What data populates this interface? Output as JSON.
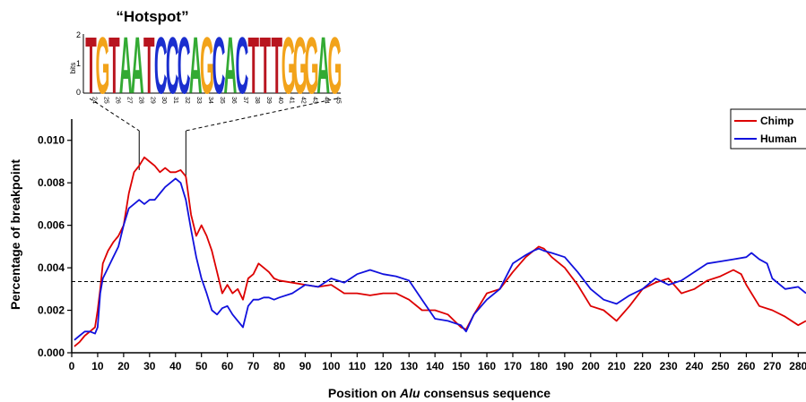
{
  "chart_data": {
    "type": "line",
    "title": "",
    "xlabel_parts": [
      "Position on ",
      "Alu",
      " consensus sequence"
    ],
    "ylabel": "Percentage of breakpoint",
    "xlim": [
      0,
      283
    ],
    "ylim": [
      0,
      0.011
    ],
    "x_ticks": [
      0,
      10,
      20,
      30,
      40,
      50,
      60,
      70,
      80,
      90,
      100,
      110,
      120,
      130,
      140,
      150,
      160,
      170,
      180,
      190,
      200,
      210,
      220,
      230,
      240,
      250,
      260,
      270,
      280
    ],
    "y_ticks": [
      {
        "value": 0.0,
        "label": "0.000"
      },
      {
        "value": 0.002,
        "label": "0.002"
      },
      {
        "value": 0.004,
        "label": "0.004"
      },
      {
        "value": 0.006,
        "label": "0.006"
      },
      {
        "value": 0.008,
        "label": "0.008"
      },
      {
        "value": 0.01,
        "label": "0.010"
      }
    ],
    "reference_line": {
      "y": 0.00335,
      "style": "dashed"
    },
    "legend_position": "top-right",
    "series": [
      {
        "name": "Chimp",
        "color": "#dd0000",
        "x": [
          1,
          3,
          5,
          7,
          9,
          10,
          11,
          12,
          14,
          16,
          18,
          20,
          22,
          24,
          26,
          28,
          30,
          32,
          34,
          36,
          38,
          40,
          42,
          44,
          46,
          48,
          50,
          52,
          54,
          56,
          58,
          60,
          62,
          64,
          66,
          68,
          70,
          72,
          74,
          76,
          78,
          80,
          85,
          90,
          95,
          100,
          105,
          110,
          115,
          120,
          125,
          130,
          135,
          140,
          145,
          150,
          152,
          155,
          160,
          165,
          170,
          175,
          178,
          180,
          182,
          185,
          190,
          195,
          200,
          205,
          210,
          215,
          220,
          225,
          230,
          235,
          240,
          245,
          250,
          255,
          258,
          260,
          265,
          270,
          275,
          280,
          283
        ],
        "y": [
          0.0003,
          0.0005,
          0.0008,
          0.001,
          0.0012,
          0.002,
          0.003,
          0.0042,
          0.0048,
          0.0052,
          0.0055,
          0.006,
          0.0075,
          0.0085,
          0.0088,
          0.0092,
          0.009,
          0.0088,
          0.0085,
          0.0087,
          0.0085,
          0.0085,
          0.0086,
          0.0083,
          0.0065,
          0.0055,
          0.006,
          0.0055,
          0.0048,
          0.0038,
          0.0028,
          0.0032,
          0.0028,
          0.003,
          0.0025,
          0.0035,
          0.0037,
          0.0042,
          0.004,
          0.0038,
          0.0035,
          0.0034,
          0.0033,
          0.0032,
          0.0031,
          0.0032,
          0.0028,
          0.0028,
          0.0027,
          0.0028,
          0.0028,
          0.0025,
          0.002,
          0.002,
          0.0018,
          0.0012,
          0.0011,
          0.0018,
          0.0028,
          0.003,
          0.0038,
          0.0045,
          0.0048,
          0.005,
          0.0049,
          0.0045,
          0.004,
          0.0032,
          0.0022,
          0.002,
          0.0015,
          0.0022,
          0.003,
          0.0033,
          0.0035,
          0.0028,
          0.003,
          0.0034,
          0.0036,
          0.0039,
          0.0037,
          0.0032,
          0.0022,
          0.002,
          0.0017,
          0.0013,
          0.0015
        ]
      },
      {
        "name": "Human",
        "color": "#1111dd",
        "x": [
          1,
          3,
          5,
          7,
          9,
          10,
          11,
          12,
          14,
          16,
          18,
          20,
          22,
          24,
          26,
          28,
          30,
          32,
          34,
          36,
          38,
          40,
          42,
          44,
          46,
          48,
          50,
          52,
          54,
          56,
          58,
          60,
          62,
          64,
          66,
          68,
          70,
          72,
          74,
          76,
          78,
          80,
          85,
          90,
          95,
          100,
          105,
          110,
          115,
          120,
          125,
          130,
          135,
          140,
          145,
          150,
          152,
          155,
          160,
          165,
          170,
          175,
          178,
          180,
          182,
          185,
          190,
          195,
          200,
          205,
          210,
          215,
          220,
          225,
          230,
          235,
          240,
          245,
          250,
          255,
          260,
          262,
          265,
          268,
          270,
          275,
          280,
          283
        ],
        "y": [
          0.0006,
          0.0008,
          0.001,
          0.001,
          0.0009,
          0.0012,
          0.0028,
          0.0035,
          0.004,
          0.0045,
          0.005,
          0.006,
          0.0068,
          0.007,
          0.0072,
          0.007,
          0.0072,
          0.0072,
          0.0075,
          0.0078,
          0.008,
          0.0082,
          0.008,
          0.0072,
          0.0058,
          0.0045,
          0.0035,
          0.0028,
          0.002,
          0.0018,
          0.0021,
          0.0022,
          0.0018,
          0.0015,
          0.0012,
          0.0022,
          0.0025,
          0.0025,
          0.0026,
          0.0026,
          0.0025,
          0.0026,
          0.0028,
          0.0032,
          0.0031,
          0.0035,
          0.0033,
          0.0037,
          0.0039,
          0.0037,
          0.0036,
          0.0034,
          0.0025,
          0.0016,
          0.0015,
          0.0013,
          0.001,
          0.0018,
          0.0025,
          0.003,
          0.0042,
          0.0046,
          0.0048,
          0.0049,
          0.0048,
          0.0047,
          0.0045,
          0.0038,
          0.003,
          0.0025,
          0.0023,
          0.0027,
          0.003,
          0.0035,
          0.0032,
          0.0034,
          0.0038,
          0.0042,
          0.0043,
          0.0044,
          0.0045,
          0.0047,
          0.0044,
          0.0042,
          0.0035,
          0.003,
          0.0031,
          0.0028
        ]
      }
    ]
  },
  "logo": {
    "title": "“Hotspot”",
    "ylabel": "bits",
    "y_ticks": [
      "2",
      "1",
      "0"
    ],
    "sequence": [
      "T",
      "G",
      "T",
      "A",
      "A",
      "T",
      "C",
      "C",
      "C",
      "A",
      "G",
      "C",
      "A",
      "C",
      "T",
      "T",
      "T",
      "G",
      "G",
      "G",
      "A",
      "G"
    ],
    "positions": [
      "24",
      "25",
      "26",
      "27",
      "28",
      "29",
      "30",
      "31",
      "32",
      "33",
      "34",
      "35",
      "36",
      "37",
      "38",
      "39",
      "40",
      "41",
      "42",
      "43",
      "44",
      "45"
    ],
    "base_colors": {
      "A": "#33aa33",
      "C": "#1a2ecf",
      "G": "#f2a31a",
      "T": "#b8151f"
    },
    "range_x": [
      26,
      44
    ]
  }
}
